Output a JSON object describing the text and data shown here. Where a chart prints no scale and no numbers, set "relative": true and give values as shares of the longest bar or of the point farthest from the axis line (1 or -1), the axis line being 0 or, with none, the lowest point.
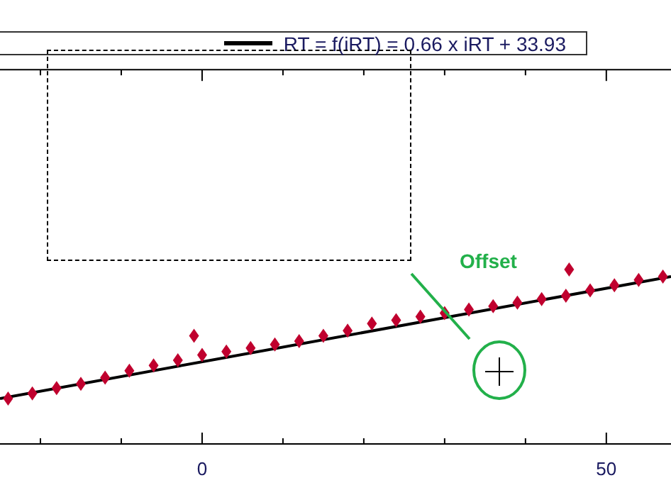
{
  "chart_data": {
    "type": "scatter",
    "relative": true,
    "legend": "top",
    "xlim": [
      -25,
      58
    ],
    "xticks": [
      {
        "value": -20,
        "label": null
      },
      {
        "value": -10,
        "label": null
      },
      0,
      {
        "value": 10,
        "label": null
      },
      {
        "value": 20,
        "label": null
      },
      {
        "value": 30,
        "label": null
      },
      {
        "value": 40,
        "label": null
      },
      50
    ],
    "annotations": [
      "Offset"
    ],
    "series": [
      {
        "marker": "diamond",
        "color": "#c0002e",
        "x": [
          -24,
          -21,
          -18,
          -15,
          -12,
          -9,
          -6,
          -3,
          0,
          3,
          6,
          9,
          12,
          15,
          18,
          21,
          24,
          27,
          30,
          33,
          36,
          39,
          42,
          45,
          48,
          51,
          54,
          57,
          -1,
          45.4
        ],
        "values": [
          0.26,
          0.29,
          0.32,
          0.345,
          0.38,
          0.42,
          0.45,
          0.48,
          0.51,
          0.53,
          0.55,
          0.57,
          0.59,
          0.62,
          0.65,
          0.69,
          0.71,
          0.73,
          0.75,
          0.77,
          0.79,
          0.81,
          0.83,
          0.85,
          0.88,
          0.91,
          0.94,
          0.96,
          0.62,
          1.0
        ]
      },
      {
        "type": "line",
        "name": "RT = f(iRT) = 0.66 x iRT + 33.93",
        "color": "#000000",
        "x": [
          -25,
          58
        ],
        "values": [
          0.26,
          0.96
        ]
      }
    ]
  }
}
